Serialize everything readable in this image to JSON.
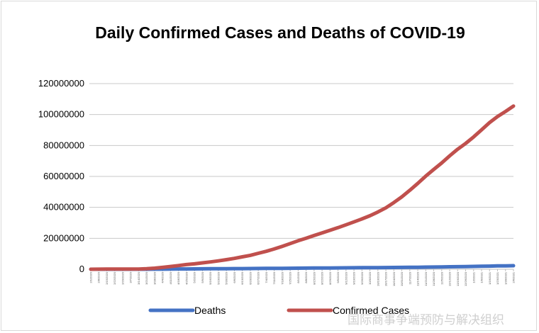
{
  "chart_data": {
    "type": "line",
    "title": "Daily Confirmed Cases and Deaths of COVID-19",
    "xlabel": "",
    "ylabel": "",
    "ylim": [
      0,
      120000000
    ],
    "yticks": [
      "0",
      "20000000",
      "40000000",
      "60000000",
      "80000000",
      "100000000",
      "120000000"
    ],
    "grid": true,
    "legend_position": "bottom",
    "x": [
      "2/1/2020",
      "2/8/2020",
      "2/15/2020",
      "2/22/2020",
      "2/29/2020",
      "3/7/2020",
      "3/14/2020",
      "3/21/2020",
      "3/28/2020",
      "4/4/2020",
      "4/11/2020",
      "4/18/2020",
      "4/25/2020",
      "5/2/2020",
      "5/9/2020",
      "5/16/2020",
      "5/23/2020",
      "5/30/2020",
      "6/6/2020",
      "6/13/2020",
      "6/20/2020",
      "6/27/2020",
      "7/4/2020",
      "7/11/2020",
      "7/18/2020",
      "7/25/2020",
      "8/1/2020",
      "8/8/2020",
      "8/15/2020",
      "8/22/2020",
      "8/29/2020",
      "9/5/2020",
      "9/12/2020",
      "9/19/2020",
      "9/26/2020",
      "10/3/2020",
      "10/10/2020",
      "10/17/2020",
      "10/24/2020",
      "10/31/2020",
      "11/7/2020",
      "11/14/2020",
      "11/21/2020",
      "11/28/2020",
      "12/5/2020",
      "12/12/2020",
      "12/19/2020",
      "12/26/2020",
      "1/2/2021",
      "1/9/2021",
      "1/16/2021",
      "1/23/2021",
      "1/30/2021",
      "2/6/2021"
    ],
    "series": [
      {
        "name": "Deaths",
        "color": "#4472c4",
        "values": [
          300,
          800,
          1700,
          2500,
          3000,
          3600,
          6000,
          13000,
          33000,
          64000,
          108000,
          164000,
          206000,
          245000,
          283000,
          316000,
          345000,
          373000,
          400000,
          430000,
          460000,
          500000,
          540000,
          570000,
          610000,
          650000,
          690000,
          730000,
          770000,
          805000,
          840000,
          875000,
          910000,
          950000,
          985000,
          1020000,
          1060000,
          1095000,
          1135000,
          1185000,
          1240000,
          1300000,
          1370000,
          1440000,
          1520000,
          1600000,
          1670000,
          1740000,
          1830000,
          1930000,
          2030000,
          2130000,
          2220000,
          2300000
        ]
      },
      {
        "name": "Confirmed Cases",
        "color": "#c0504d",
        "values": [
          12000,
          37000,
          69000,
          79000,
          86000,
          110000,
          160000,
          330000,
          690000,
          1200000,
          1800000,
          2400000,
          3000000,
          3500000,
          4100000,
          4700000,
          5400000,
          6200000,
          7000000,
          8000000,
          9000000,
          10300000,
          11600000,
          13100000,
          14800000,
          16600000,
          18400000,
          20000000,
          21800000,
          23500000,
          25200000,
          26900000,
          28700000,
          30600000,
          32500000,
          34600000,
          37000000,
          39700000,
          43100000,
          46800000,
          51000000,
          55500000,
          60200000,
          64500000,
          68700000,
          73300000,
          77600000,
          81300000,
          85500000,
          90100000,
          94800000,
          98700000,
          102000000,
          105500000
        ]
      }
    ]
  },
  "watermark": "国际商事争端预防与解决组织"
}
